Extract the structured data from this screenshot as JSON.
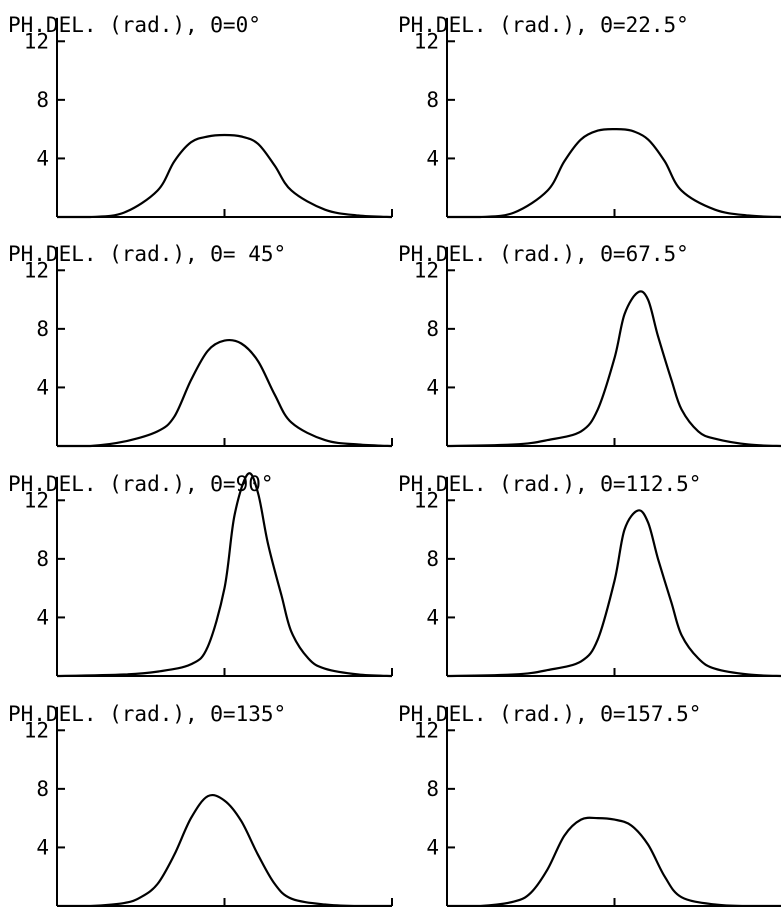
{
  "chart_data": [
    {
      "type": "line",
      "title": "PH.DEL. (rad.), Θ=0°",
      "yticks": [
        4,
        8,
        12
      ],
      "ylim": [
        0,
        14
      ],
      "series": [
        {
          "x": [
            0,
            0.1,
            0.2,
            0.3,
            0.35,
            0.4,
            0.45,
            0.5,
            0.55,
            0.6,
            0.65,
            0.7,
            0.8,
            0.9,
            1.0
          ],
          "y": [
            0,
            0,
            0.3,
            1.8,
            3.8,
            5.1,
            5.5,
            5.6,
            5.5,
            5.0,
            3.5,
            1.8,
            0.5,
            0.1,
            0
          ]
        }
      ]
    },
    {
      "type": "line",
      "title": "PH.DEL. (rad.), Θ=22.5°",
      "yticks": [
        4,
        8,
        12
      ],
      "ylim": [
        0,
        14
      ],
      "series": [
        {
          "x": [
            0,
            0.1,
            0.2,
            0.3,
            0.35,
            0.4,
            0.45,
            0.5,
            0.55,
            0.6,
            0.65,
            0.7,
            0.8,
            0.9,
            1.0
          ],
          "y": [
            0,
            0,
            0.3,
            1.8,
            3.8,
            5.3,
            5.9,
            6.0,
            5.9,
            5.3,
            3.8,
            1.8,
            0.5,
            0.1,
            0
          ]
        }
      ]
    },
    {
      "type": "line",
      "title": "PH.DEL. (rad.), Θ= 45°",
      "yticks": [
        4,
        8,
        12
      ],
      "ylim": [
        0,
        14
      ],
      "series": [
        {
          "x": [
            0,
            0.1,
            0.2,
            0.3,
            0.35,
            0.4,
            0.45,
            0.5,
            0.55,
            0.6,
            0.65,
            0.7,
            0.8,
            0.9,
            1.0
          ],
          "y": [
            0,
            0,
            0.3,
            1.0,
            2.0,
            4.5,
            6.5,
            7.2,
            7.0,
            5.8,
            3.5,
            1.6,
            0.4,
            0.1,
            0
          ]
        }
      ]
    },
    {
      "type": "line",
      "title": "PH.DEL. (rad.), Θ=67.5°",
      "yticks": [
        4,
        8,
        12
      ],
      "ylim": [
        0,
        14
      ],
      "series": [
        {
          "x": [
            0,
            0.2,
            0.3,
            0.4,
            0.45,
            0.5,
            0.53,
            0.57,
            0.6,
            0.63,
            0.67,
            0.7,
            0.75,
            0.8,
            0.9,
            1.0
          ],
          "y": [
            0,
            0.1,
            0.4,
            1.0,
            2.5,
            6.0,
            9.0,
            10.5,
            10.0,
            7.5,
            4.5,
            2.5,
            1.0,
            0.5,
            0.1,
            0
          ]
        }
      ]
    },
    {
      "type": "line",
      "title": "PH.DEL. (rad.), Θ=90°",
      "yticks": [
        4,
        8,
        12
      ],
      "ylim": [
        0,
        14
      ],
      "series": [
        {
          "x": [
            0,
            0.2,
            0.3,
            0.4,
            0.45,
            0.5,
            0.53,
            0.57,
            0.6,
            0.63,
            0.67,
            0.7,
            0.75,
            0.8,
            0.9,
            1.0
          ],
          "y": [
            0,
            0.1,
            0.3,
            0.8,
            2.0,
            6.0,
            11.0,
            13.8,
            12.5,
            9.0,
            5.5,
            3.0,
            1.2,
            0.5,
            0.1,
            0
          ]
        }
      ]
    },
    {
      "type": "line",
      "title": "PH.DEL. (rad.), Θ=112.5°",
      "yticks": [
        4,
        8,
        12
      ],
      "ylim": [
        0,
        14
      ],
      "series": [
        {
          "x": [
            0,
            0.2,
            0.3,
            0.4,
            0.45,
            0.5,
            0.53,
            0.57,
            0.6,
            0.63,
            0.67,
            0.7,
            0.75,
            0.8,
            0.9,
            1.0
          ],
          "y": [
            0,
            0.1,
            0.4,
            1.0,
            2.5,
            6.5,
            10.0,
            11.3,
            10.5,
            8.0,
            5.0,
            2.8,
            1.2,
            0.5,
            0.1,
            0
          ]
        }
      ]
    },
    {
      "type": "line",
      "title": "PH.DEL. (rad.), Θ=135°",
      "yticks": [
        4,
        8,
        12
      ],
      "ylim": [
        0,
        14
      ],
      "series": [
        {
          "x": [
            0,
            0.1,
            0.2,
            0.25,
            0.3,
            0.35,
            0.4,
            0.45,
            0.5,
            0.55,
            0.6,
            0.65,
            0.7,
            0.8,
            0.9,
            1.0
          ],
          "y": [
            0,
            0,
            0.2,
            0.6,
            1.5,
            3.5,
            6.0,
            7.5,
            7.2,
            5.8,
            3.5,
            1.5,
            0.5,
            0.1,
            0,
            0
          ]
        }
      ]
    },
    {
      "type": "line",
      "title": "PH.DEL. (rad.), Θ=157.5°",
      "yticks": [
        4,
        8,
        12
      ],
      "ylim": [
        0,
        14
      ],
      "series": [
        {
          "x": [
            0,
            0.1,
            0.2,
            0.25,
            0.3,
            0.35,
            0.4,
            0.45,
            0.5,
            0.55,
            0.6,
            0.65,
            0.7,
            0.8,
            0.9,
            1.0
          ],
          "y": [
            0,
            0,
            0.3,
            0.9,
            2.5,
            4.8,
            5.9,
            6.0,
            5.9,
            5.5,
            4.2,
            2.0,
            0.6,
            0.1,
            0,
            0
          ]
        }
      ]
    }
  ]
}
